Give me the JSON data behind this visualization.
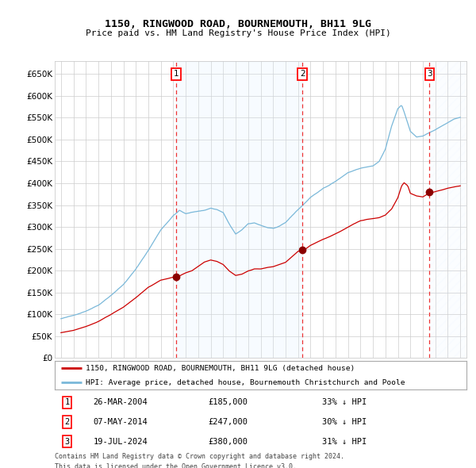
{
  "title": "1150, RINGWOOD ROAD, BOURNEMOUTH, BH11 9LG",
  "subtitle": "Price paid vs. HM Land Registry's House Price Index (HPI)",
  "legend_line1": "1150, RINGWOOD ROAD, BOURNEMOUTH, BH11 9LG (detached house)",
  "legend_line2": "HPI: Average price, detached house, Bournemouth Christchurch and Poole",
  "footer1": "Contains HM Land Registry data © Crown copyright and database right 2024.",
  "footer2": "This data is licensed under the Open Government Licence v3.0.",
  "transactions": [
    {
      "num": 1,
      "date": "26-MAR-2004",
      "price": 185000,
      "pct": "33% ↓ HPI",
      "x_year": 2004.23
    },
    {
      "num": 2,
      "date": "07-MAY-2014",
      "price": 247000,
      "pct": "30% ↓ HPI",
      "x_year": 2014.35
    },
    {
      "num": 3,
      "date": "19-JUL-2024",
      "price": 380000,
      "pct": "31% ↓ HPI",
      "x_year": 2024.54
    }
  ],
  "hpi_color": "#7ab8d9",
  "price_color": "#cc0000",
  "dot_color": "#8b0000",
  "vline_color": "#ee3333",
  "shade_color": "#ddeeff",
  "grid_color": "#cccccc",
  "bg_color": "#ffffff",
  "ylim": [
    0,
    680000
  ],
  "xlim_start": 1994.5,
  "xlim_end": 2027.5,
  "yticks": [
    0,
    50000,
    100000,
    150000,
    200000,
    250000,
    300000,
    350000,
    400000,
    450000,
    500000,
    550000,
    600000,
    650000
  ]
}
